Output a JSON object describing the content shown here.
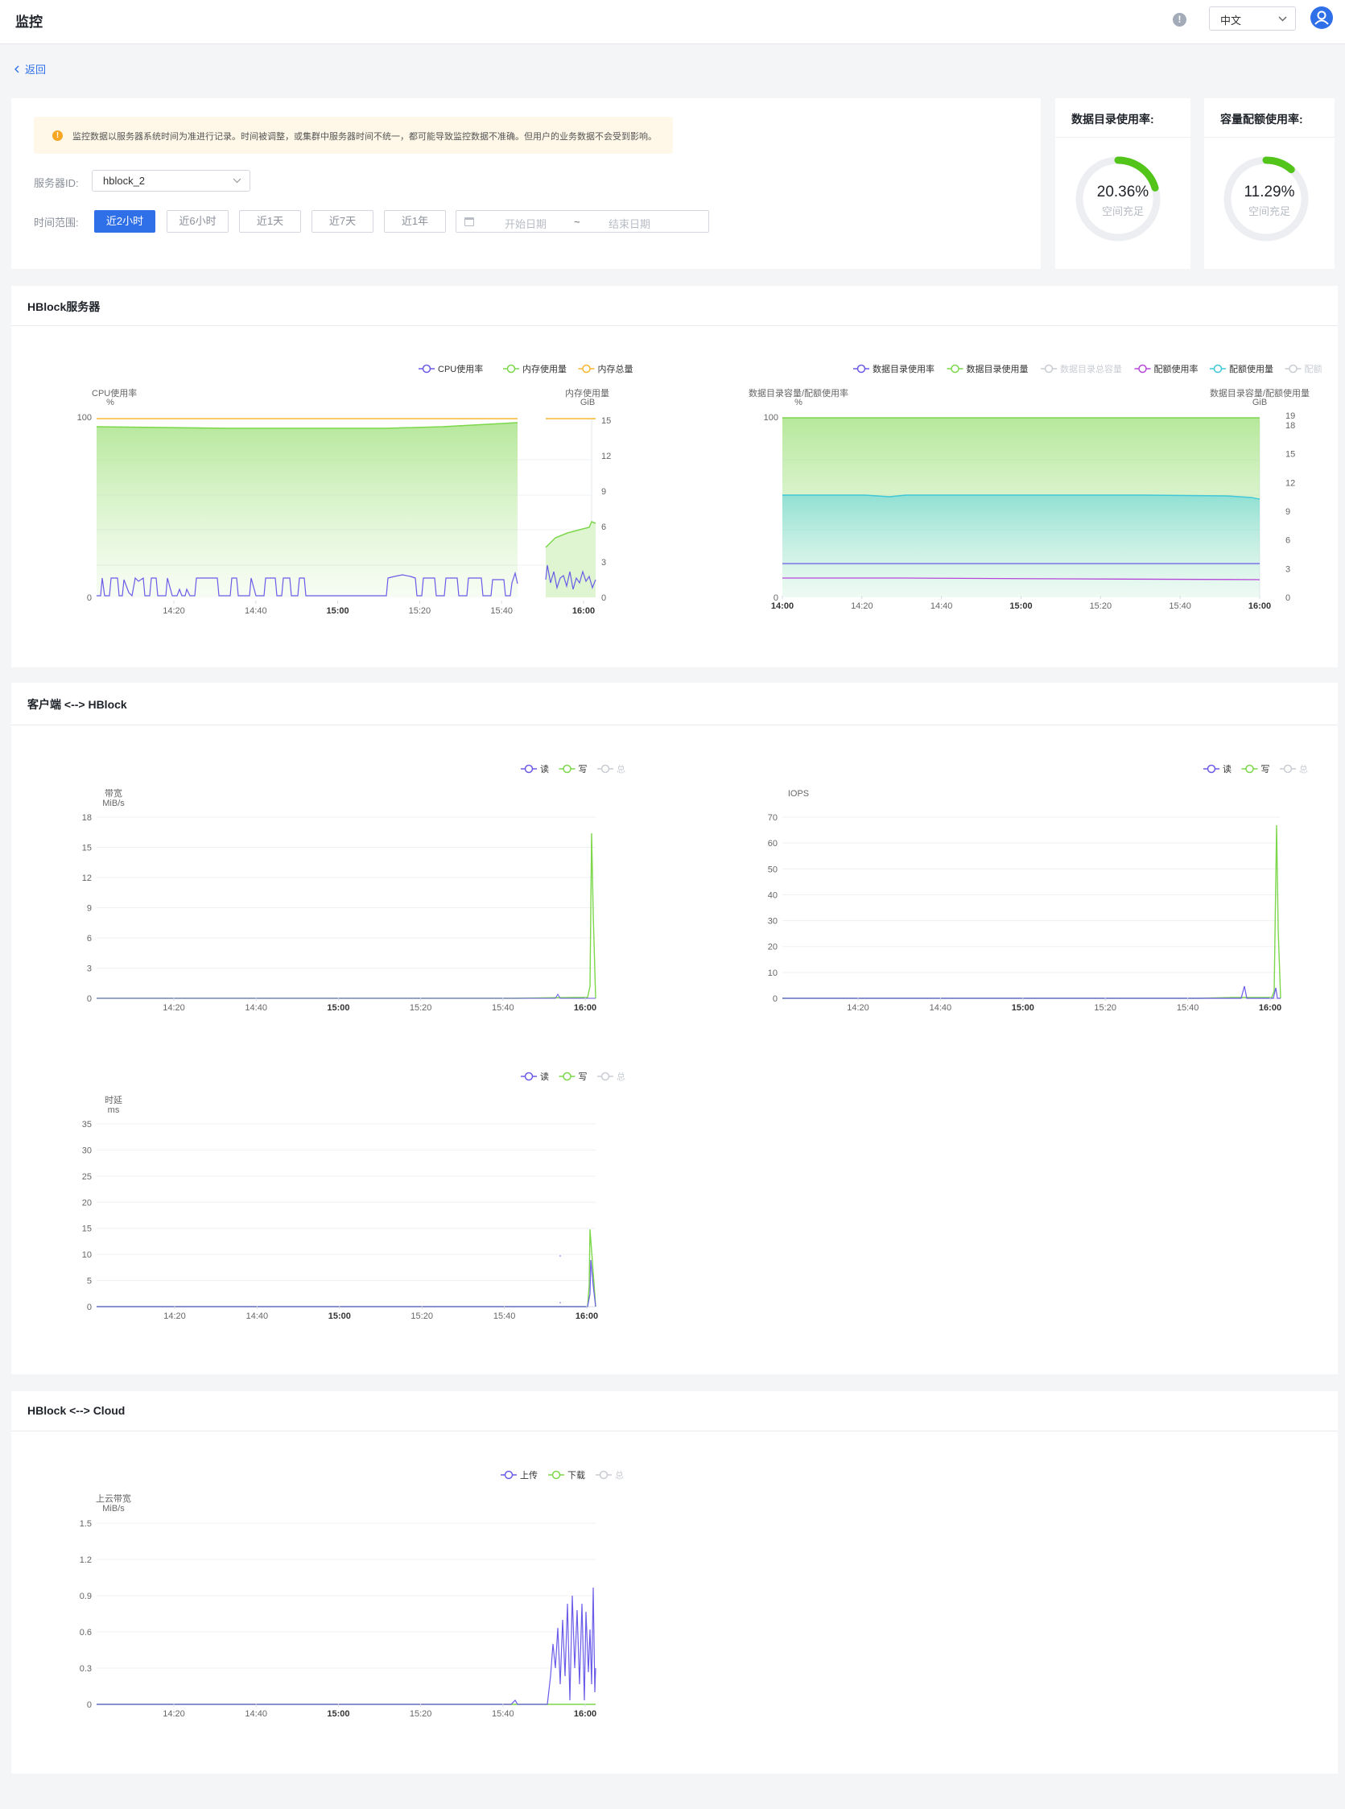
{
  "header": {
    "title": "监控",
    "help_icon": "info-circle-icon",
    "language": "中文",
    "user_icon": "user-avatar-icon"
  },
  "back": {
    "label": "返回"
  },
  "filter": {
    "notice": "监控数据以服务器系统时间为准进行记录。时间被调整，或集群中服务器时间不统一，都可能导致监控数据不准确。但用户的业务数据不会受到影响。",
    "server_label": "服务器ID:",
    "server_value": "hblock_2",
    "time_label": "时间范围:",
    "time_options": [
      "近2小时",
      "近6小时",
      "近1天",
      "近7天",
      "近1年"
    ],
    "active_time": "近2小时",
    "start_placeholder": "开始日期",
    "range_sep": "~",
    "end_placeholder": "结束日期"
  },
  "usage_panels": [
    {
      "title": "数据目录使用率:",
      "value": "20.36%",
      "fraction": 0.2036,
      "status": "空间充足"
    },
    {
      "title": "容量配额使用率:",
      "value": "11.29%",
      "fraction": 0.1129,
      "status": "空间充足"
    }
  ],
  "sections": {
    "server": "HBlock服务器",
    "client": "客户端 <--> HBlock",
    "cloud": "HBlock <--> Cloud"
  },
  "colors": {
    "purple": "#6a5be8",
    "green": "#7cd74a",
    "yellow": "#f5b72e",
    "cyan": "#40c8d8",
    "magenta": "#b548d8",
    "gray": "#c8ccd3",
    "primary": "#2f6fe8"
  },
  "charts": {
    "cpu_mem": {
      "legend": [
        {
          "label": "CPU使用率",
          "color": "#6a5be8"
        },
        {
          "label": "内存使用量",
          "color": "#7cd74a"
        },
        {
          "label": "内存总量",
          "color": "#f5b72e"
        }
      ],
      "left_axis": {
        "title": "CPU使用率",
        "unit": "%",
        "ticks": [
          "100",
          "0"
        ]
      },
      "right_axis": {
        "title": "内存使用量",
        "unit": "GiB",
        "ticks": [
          "15",
          "12",
          "9",
          "6",
          "3",
          "0"
        ]
      },
      "x_ticks": [
        {
          "label": "14:20",
          "bold": false
        },
        {
          "label": "14:40",
          "bold": false
        },
        {
          "label": "15:00",
          "bold": true
        },
        {
          "label": "15:20",
          "bold": false
        },
        {
          "label": "15:40",
          "bold": false
        },
        {
          "label": "16:00",
          "bold": true
        }
      ]
    },
    "data_dir": {
      "legend": [
        {
          "label": "数据目录使用率",
          "color": "#6a5be8",
          "off": false
        },
        {
          "label": "数据目录使用量",
          "color": "#7cd74a",
          "off": false
        },
        {
          "label": "数据目录总容量",
          "color": "#c8ccd3",
          "off": true
        },
        {
          "label": "配额使用率",
          "color": "#b548d8",
          "off": false
        },
        {
          "label": "配额使用量",
          "color": "#40c8d8",
          "off": false
        },
        {
          "label": "配额",
          "color": "#c8ccd3",
          "off": true
        }
      ],
      "left_axis": {
        "title": "数据目录容量/配额使用率",
        "unit": "%",
        "ticks": [
          "100",
          "0"
        ]
      },
      "right_axis": {
        "title": "数据目录容量/配额使用量",
        "unit": "GiB",
        "ticks": [
          "19",
          "18",
          "15",
          "12",
          "9",
          "6",
          "3",
          "0"
        ]
      },
      "x_ticks": [
        {
          "label": "14:00",
          "bold": true
        },
        {
          "label": "14:20",
          "bold": false
        },
        {
          "label": "14:40",
          "bold": false
        },
        {
          "label": "15:00",
          "bold": true
        },
        {
          "label": "15:20",
          "bold": false
        },
        {
          "label": "15:40",
          "bold": false
        },
        {
          "label": "16:00",
          "bold": true
        }
      ]
    },
    "bandwidth": {
      "legend": [
        {
          "label": "读",
          "color": "#6a5be8",
          "off": false
        },
        {
          "label": "写",
          "color": "#7cd74a",
          "off": false
        },
        {
          "label": "总",
          "color": "#c8ccd3",
          "off": true
        }
      ],
      "axis": {
        "title": "带宽",
        "unit": "MiB/s",
        "ticks": [
          "18",
          "15",
          "12",
          "9",
          "6",
          "3",
          "0"
        ]
      },
      "x_ticks": [
        {
          "label": "14:20",
          "bold": false
        },
        {
          "label": "14:40",
          "bold": false
        },
        {
          "label": "15:00",
          "bold": true
        },
        {
          "label": "15:20",
          "bold": false
        },
        {
          "label": "15:40",
          "bold": false
        },
        {
          "label": "16:00",
          "bold": true
        }
      ]
    },
    "iops": {
      "legend": [
        {
          "label": "读",
          "color": "#6a5be8",
          "off": false
        },
        {
          "label": "写",
          "color": "#7cd74a",
          "off": false
        },
        {
          "label": "总",
          "color": "#c8ccd3",
          "off": true
        }
      ],
      "axis": {
        "title": "IOPS",
        "unit": "",
        "ticks": [
          "70",
          "60",
          "50",
          "40",
          "30",
          "20",
          "10",
          "0"
        ]
      },
      "x_ticks": [
        {
          "label": "14:20",
          "bold": false
        },
        {
          "label": "14:40",
          "bold": false
        },
        {
          "label": "15:00",
          "bold": true
        },
        {
          "label": "15:20",
          "bold": false
        },
        {
          "label": "15:40",
          "bold": false
        },
        {
          "label": "16:00",
          "bold": true
        }
      ]
    },
    "latency": {
      "legend": [
        {
          "label": "读",
          "color": "#6a5be8",
          "off": false
        },
        {
          "label": "写",
          "color": "#7cd74a",
          "off": false
        },
        {
          "label": "总",
          "color": "#c8ccd3",
          "off": true
        }
      ],
      "axis": {
        "title": "时延",
        "unit": "ms",
        "ticks": [
          "35",
          "30",
          "25",
          "20",
          "15",
          "10",
          "5",
          "0"
        ]
      },
      "x_ticks": [
        {
          "label": "14:20",
          "bold": false
        },
        {
          "label": "14:40",
          "bold": false
        },
        {
          "label": "15:00",
          "bold": true
        },
        {
          "label": "15:20",
          "bold": false
        },
        {
          "label": "15:40",
          "bold": false
        },
        {
          "label": "16:00",
          "bold": true
        }
      ]
    },
    "cloud": {
      "legend": [
        {
          "label": "上传",
          "color": "#6a5be8",
          "off": false
        },
        {
          "label": "下载",
          "color": "#7cd74a",
          "off": false
        },
        {
          "label": "总",
          "color": "#c8ccd3",
          "off": true
        }
      ],
      "axis": {
        "title": "上云带宽",
        "unit": "MiB/s",
        "ticks": [
          "1.5",
          "1.2",
          "0.9",
          "0.6",
          "0.3",
          "0"
        ]
      },
      "x_ticks": [
        {
          "label": "14:20",
          "bold": false
        },
        {
          "label": "14:40",
          "bold": false
        },
        {
          "label": "15:00",
          "bold": true
        },
        {
          "label": "15:20",
          "bold": false
        },
        {
          "label": "15:40",
          "bold": false
        },
        {
          "label": "16:00",
          "bold": true
        }
      ]
    }
  }
}
